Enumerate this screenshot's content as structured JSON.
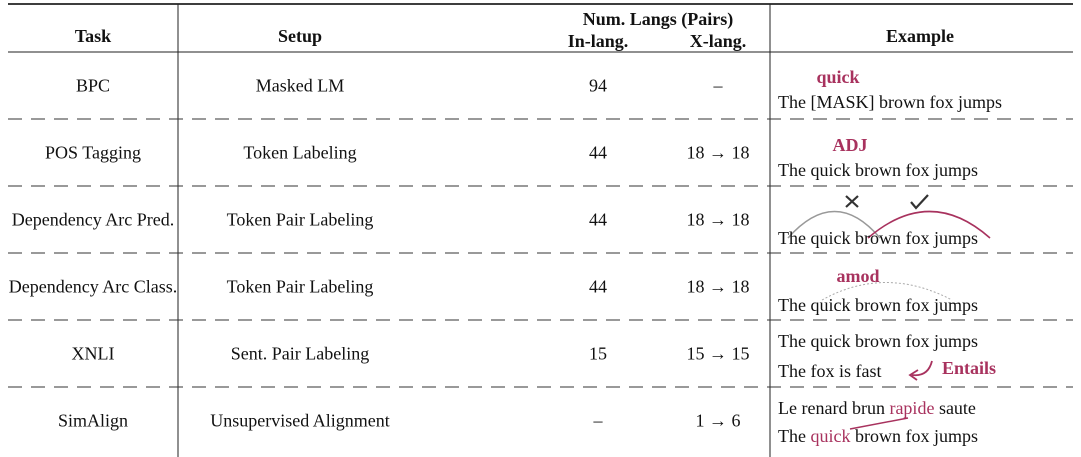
{
  "header": {
    "task": "Task",
    "setup": "Setup",
    "num_langs": "Num. Langs (Pairs)",
    "in_lang": "In-lang.",
    "x_lang": "X-lang.",
    "example": "Example"
  },
  "rows": [
    {
      "task": "BPC",
      "setup": "Masked LM",
      "in_lang": 94,
      "x_lang": "–",
      "example": {
        "label": "quick",
        "sentence": "The [MASK] brown fox jumps"
      }
    },
    {
      "task": "POS Tagging",
      "setup": "Token Labeling",
      "in_lang": 44,
      "x_lang": "18 → 18",
      "example": {
        "label": "ADJ",
        "sentence": "The quick brown fox jumps"
      }
    },
    {
      "task": "Dependency Arc Pred.",
      "setup": "Token Pair Labeling",
      "in_lang": 44,
      "x_lang": "18 → 18",
      "example": {
        "sentence": "The quick brown fox jumps"
      }
    },
    {
      "task": "Dependency Arc Class.",
      "setup": "Token Pair Labeling",
      "in_lang": 44,
      "x_lang": "18 → 18",
      "example": {
        "label": "amod",
        "sentence": "The quick brown fox jumps"
      }
    },
    {
      "task": "XNLI",
      "setup": "Sent. Pair Labeling",
      "in_lang": 15,
      "x_lang": "15 → 15",
      "example": {
        "premise": "The quick brown fox jumps",
        "hypothesis": "The fox is fast",
        "label": "Entails"
      }
    },
    {
      "task": "SimAlign",
      "setup": "Unsupervised Alignment",
      "in_lang": "–",
      "x_lang": "1 → 6",
      "example": {
        "source": [
          "Le renard brun ",
          "rapide",
          " saute"
        ],
        "target": [
          "The ",
          "quick",
          " brown fox jumps"
        ]
      }
    }
  ]
}
